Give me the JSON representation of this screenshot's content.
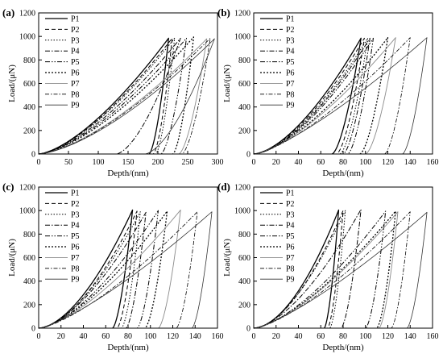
{
  "chart_data": [
    {
      "panel_label": "(a)",
      "type": "line",
      "xlabel": "Depth/(nm)",
      "ylabel": "Load/(μN)",
      "xlim": [
        0,
        300
      ],
      "ylim": [
        0,
        1200
      ],
      "xticks": [
        0,
        50,
        100,
        150,
        200,
        250,
        300
      ],
      "yticks": [
        0,
        200,
        400,
        600,
        800,
        1000,
        1200
      ],
      "legend_position": "top-left",
      "series": [
        {
          "name": "P1",
          "max_depth": 218,
          "max_load": 985,
          "residual_depth": 185,
          "exponent": 1.5
        },
        {
          "name": "P2",
          "max_depth": 224,
          "max_load": 985,
          "residual_depth": 192,
          "exponent": 1.5
        },
        {
          "name": "P3",
          "max_depth": 228,
          "max_load": 985,
          "residual_depth": 196,
          "exponent": 1.5
        },
        {
          "name": "P4",
          "max_depth": 238,
          "max_load": 985,
          "residual_depth": 130,
          "exponent": 1.5
        },
        {
          "name": "P5",
          "max_depth": 248,
          "max_load": 985,
          "residual_depth": 205,
          "exponent": 1.5
        },
        {
          "name": "P6",
          "max_depth": 260,
          "max_load": 995,
          "residual_depth": 225,
          "exponent": 1.5
        },
        {
          "name": "P7",
          "max_depth": 282,
          "max_load": 980,
          "residual_depth": 235,
          "exponent": 1.5
        },
        {
          "name": "P8",
          "max_depth": 288,
          "max_load": 985,
          "residual_depth": 240,
          "exponent": 1.5
        },
        {
          "name": "P9",
          "max_depth": 295,
          "max_load": 980,
          "residual_depth": 178,
          "exponent": 1.5
        }
      ]
    },
    {
      "panel_label": "(b)",
      "type": "line",
      "xlabel": "Depth/(nm)",
      "ylabel": "Load/(μN)",
      "xlim": [
        0,
        160
      ],
      "ylim": [
        0,
        1200
      ],
      "xticks": [
        0,
        20,
        40,
        60,
        80,
        100,
        120,
        140,
        160
      ],
      "yticks": [
        0,
        200,
        400,
        600,
        800,
        1000,
        1200
      ],
      "legend_position": "top-left",
      "series": [
        {
          "name": "P1",
          "max_depth": 96,
          "max_load": 985,
          "residual_depth": 70,
          "exponent": 1.6
        },
        {
          "name": "P2",
          "max_depth": 99,
          "max_load": 985,
          "residual_depth": 74,
          "exponent": 1.6
        },
        {
          "name": "P3",
          "max_depth": 102,
          "max_load": 985,
          "residual_depth": 77,
          "exponent": 1.6
        },
        {
          "name": "P4",
          "max_depth": 104,
          "max_load": 985,
          "residual_depth": 80,
          "exponent": 1.6
        },
        {
          "name": "P5",
          "max_depth": 107,
          "max_load": 985,
          "residual_depth": 84,
          "exponent": 1.6
        },
        {
          "name": "P6",
          "max_depth": 120,
          "max_load": 990,
          "residual_depth": 95,
          "exponent": 1.5
        },
        {
          "name": "P7",
          "max_depth": 127,
          "max_load": 990,
          "residual_depth": 100,
          "exponent": 1.45
        },
        {
          "name": "P8",
          "max_depth": 140,
          "max_load": 990,
          "residual_depth": 117,
          "exponent": 1.4
        },
        {
          "name": "P9",
          "max_depth": 155,
          "max_load": 990,
          "residual_depth": 133,
          "exponent": 1.3
        }
      ]
    },
    {
      "panel_label": "(c)",
      "type": "line",
      "xlabel": "Depth/(nm)",
      "ylabel": "Load/(μN)",
      "xlim": [
        0,
        160
      ],
      "ylim": [
        0,
        1200
      ],
      "xticks": [
        0,
        20,
        40,
        60,
        80,
        100,
        120,
        140,
        160
      ],
      "yticks": [
        0,
        200,
        400,
        600,
        800,
        1000,
        1200
      ],
      "legend_position": "top-left",
      "series": [
        {
          "name": "P1",
          "max_depth": 84,
          "max_load": 1005,
          "residual_depth": 66,
          "exponent": 1.7
        },
        {
          "name": "P2",
          "max_depth": 88,
          "max_load": 995,
          "residual_depth": 70,
          "exponent": 1.7
        },
        {
          "name": "P3",
          "max_depth": 91,
          "max_load": 990,
          "residual_depth": 74,
          "exponent": 1.65
        },
        {
          "name": "P4",
          "max_depth": 96,
          "max_load": 985,
          "residual_depth": 78,
          "exponent": 1.6
        },
        {
          "name": "P5",
          "max_depth": 107,
          "max_load": 1000,
          "residual_depth": 88,
          "exponent": 1.55
        },
        {
          "name": "P6",
          "max_depth": 115,
          "max_load": 995,
          "residual_depth": 95,
          "exponent": 1.5
        },
        {
          "name": "P7",
          "max_depth": 127,
          "max_load": 1005,
          "residual_depth": 107,
          "exponent": 1.45
        },
        {
          "name": "P8",
          "max_depth": 142,
          "max_load": 990,
          "residual_depth": 123,
          "exponent": 1.4
        },
        {
          "name": "P9",
          "max_depth": 155,
          "max_load": 990,
          "residual_depth": 137,
          "exponent": 1.3
        }
      ]
    },
    {
      "panel_label": "(d)",
      "type": "line",
      "xlabel": "Depth/(nm)",
      "ylabel": "Load/(μN)",
      "xlim": [
        0,
        160
      ],
      "ylim": [
        0,
        1200
      ],
      "xticks": [
        0,
        20,
        40,
        60,
        80,
        100,
        120,
        140,
        160
      ],
      "yticks": [
        0,
        200,
        400,
        600,
        800,
        1000,
        1200
      ],
      "legend_position": "top-left",
      "series": [
        {
          "name": "P1",
          "max_depth": 76,
          "max_load": 1005,
          "residual_depth": 63,
          "exponent": 1.8
        },
        {
          "name": "P2",
          "max_depth": 80,
          "max_load": 1000,
          "residual_depth": 66,
          "exponent": 1.75
        },
        {
          "name": "P3",
          "max_depth": 82,
          "max_load": 1000,
          "residual_depth": 68,
          "exponent": 1.7
        },
        {
          "name": "P4",
          "max_depth": 96,
          "max_load": 1010,
          "residual_depth": 78,
          "exponent": 1.6
        },
        {
          "name": "P5",
          "max_depth": 118,
          "max_load": 995,
          "residual_depth": 100,
          "exponent": 1.5
        },
        {
          "name": "P6",
          "max_depth": 127,
          "max_load": 995,
          "residual_depth": 110,
          "exponent": 1.45
        },
        {
          "name": "P7",
          "max_depth": 129,
          "max_load": 990,
          "residual_depth": 112,
          "exponent": 1.45
        },
        {
          "name": "P8",
          "max_depth": 140,
          "max_load": 990,
          "residual_depth": 123,
          "exponent": 1.4
        },
        {
          "name": "P9",
          "max_depth": 155,
          "max_load": 985,
          "residual_depth": 137,
          "exponent": 1.3
        }
      ]
    }
  ],
  "styles": {
    "P1": {
      "color": "#000000",
      "dash": "",
      "width": 1.3
    },
    "P2": {
      "color": "#000000",
      "dash": "5,3",
      "width": 1.0
    },
    "P3": {
      "color": "#000000",
      "dash": "1.5,2",
      "width": 1.0
    },
    "P4": {
      "color": "#000000",
      "dash": "6,2,1.5,2",
      "width": 1.0
    },
    "P5": {
      "color": "#000000",
      "dash": "6,2,1.5,2,1.5,2",
      "width": 1.0
    },
    "P6": {
      "color": "#000000",
      "dash": "2,2",
      "width": 1.3
    },
    "P7": {
      "color": "#8a8a8a",
      "dash": "",
      "width": 0.9
    },
    "P8": {
      "color": "#000000",
      "dash": "5,2,1.5,2",
      "width": 0.8
    },
    "P9": {
      "color": "#333333",
      "dash": "",
      "width": 0.8
    }
  }
}
